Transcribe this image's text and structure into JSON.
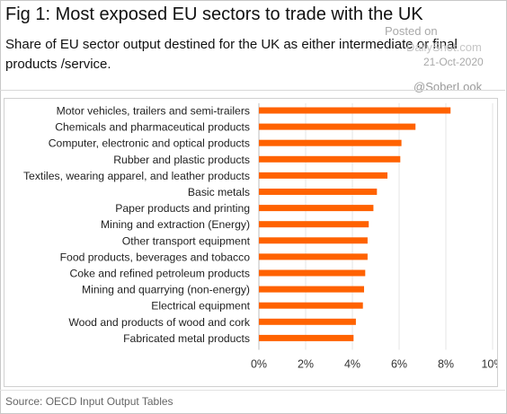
{
  "header": {
    "title": "Fig 1: Most exposed EU sectors to trade with the UK",
    "subtitle": "Share of EU sector output destined for the UK as either intermediate or final products /service."
  },
  "watermark": {
    "posted": "Posted on",
    "site": "DailyShot.com",
    "date": "21-Oct-2020",
    "handle": "@SoberLook"
  },
  "footer": {
    "source": "Source: OECD Input Output Tables"
  },
  "colors": {
    "bar": "#ff6200",
    "grid": "#e6e6e6"
  },
  "chart_data": {
    "type": "bar",
    "orientation": "horizontal",
    "categories": [
      "Motor vehicles, trailers and semi-trailers",
      "Chemicals and pharmaceutical products",
      "Computer, electronic and optical products",
      "Rubber and plastic products",
      "Textiles, wearing apparel, and leather products",
      "Basic metals",
      "Paper products and printing",
      "Mining and extraction (Energy)",
      "Other transport equipment",
      "Food products, beverages and tobacco",
      "Coke and refined petroleum products",
      "Mining and quarrying (non-energy)",
      "Electrical equipment",
      "Wood and products of wood and cork",
      "Fabricated metal products"
    ],
    "values": [
      8.2,
      6.7,
      6.1,
      6.05,
      5.5,
      5.05,
      4.9,
      4.7,
      4.65,
      4.65,
      4.55,
      4.5,
      4.45,
      4.15,
      4.05
    ],
    "title": "",
    "xlabel": "",
    "ylabel": "",
    "xlim": [
      0,
      10
    ],
    "xticks": [
      "0%",
      "2%",
      "4%",
      "6%",
      "8%",
      "10%"
    ],
    "xtick_values": [
      0,
      2,
      4,
      6,
      8,
      10
    ],
    "grid": true,
    "legend": "none"
  }
}
